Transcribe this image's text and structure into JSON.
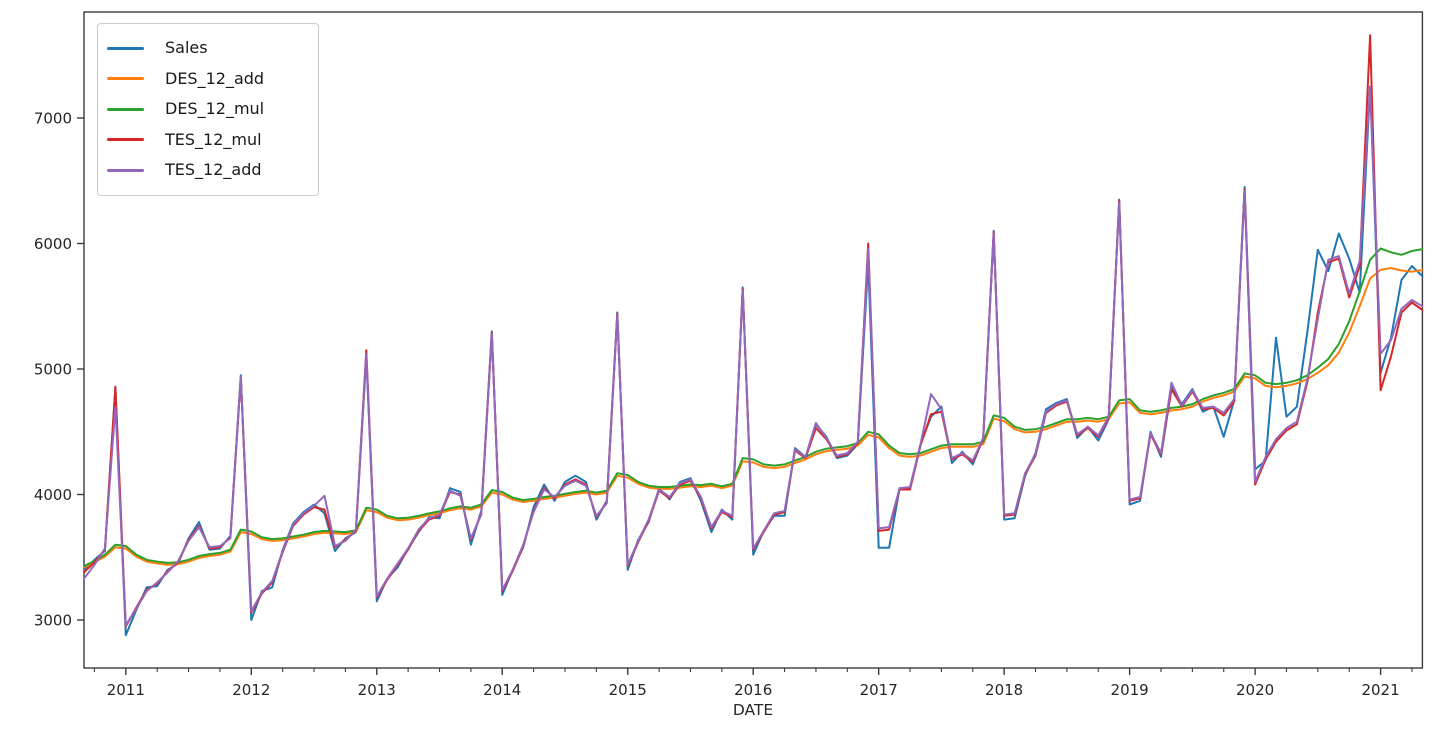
{
  "figure": {
    "background": "#ffffff",
    "spine_color": "#3b3b3b",
    "tick_color": "#3b3b3b",
    "text_color": "#262626",
    "legend_border_color": "#cccccc"
  },
  "chart_data": {
    "type": "line",
    "title": "",
    "xlabel": "DATE",
    "ylabel": "",
    "x_frequency": "monthly",
    "x_start": "2010-09",
    "x_end": "2021-05",
    "grid": false,
    "legend_position": "upper-left",
    "ylim": [
      2618,
      7844
    ],
    "y_ticks": [
      3000,
      4000,
      5000,
      6000,
      7000
    ],
    "x_major_ticks": [
      {
        "label": "2011",
        "month_index": 4
      },
      {
        "label": "2012",
        "month_index": 16
      },
      {
        "label": "2013",
        "month_index": 28
      },
      {
        "label": "2014",
        "month_index": 40
      },
      {
        "label": "2015",
        "month_index": 52
      },
      {
        "label": "2016",
        "month_index": 64
      },
      {
        "label": "2017",
        "month_index": 76
      },
      {
        "label": "2018",
        "month_index": 88
      },
      {
        "label": "2019",
        "month_index": 100
      },
      {
        "label": "2020",
        "month_index": 112
      },
      {
        "label": "2021",
        "month_index": 124
      }
    ],
    "x_minor_tick_month_indices": [
      1,
      7,
      10,
      13,
      19,
      22,
      25,
      31,
      34,
      37,
      43,
      46,
      49,
      55,
      58,
      61,
      67,
      70,
      73,
      79,
      82,
      85,
      91,
      94,
      97,
      103,
      106,
      109,
      115,
      118,
      121,
      127
    ],
    "series": [
      {
        "name": "Sales",
        "color": "#1f77b4",
        "values": [
          3400,
          3480,
          3550,
          4850,
          2880,
          3080,
          3260,
          3270,
          3400,
          3450,
          3650,
          3780,
          3560,
          3570,
          3670,
          4950,
          3000,
          3230,
          3260,
          3560,
          3770,
          3860,
          3920,
          3850,
          3550,
          3650,
          3700,
          5100,
          3150,
          3330,
          3420,
          3570,
          3700,
          3820,
          3810,
          4050,
          4020,
          3600,
          3870,
          5300,
          3200,
          3400,
          3580,
          3900,
          4080,
          3950,
          4100,
          4150,
          4100,
          3800,
          3950,
          5450,
          3400,
          3640,
          3780,
          4050,
          3960,
          4100,
          4130,
          3950,
          3700,
          3880,
          3800,
          5650,
          3520,
          3710,
          3830,
          3830,
          4370,
          4300,
          4560,
          4460,
          4290,
          4310,
          4400,
          5850,
          3575,
          3575,
          4050,
          4050,
          4400,
          4620,
          4700,
          4250,
          4340,
          4240,
          4450,
          6100,
          3800,
          3810,
          4150,
          4330,
          4680,
          4730,
          4760,
          4450,
          4540,
          4430,
          4600,
          6350,
          3920,
          3950,
          4500,
          4300,
          4860,
          4720,
          4840,
          4660,
          4700,
          4460,
          4750,
          6450,
          4200,
          4270,
          5250,
          4620,
          4700,
          5300,
          5950,
          5780,
          6080,
          5880,
          5610,
          7250,
          4970,
          5250,
          5710,
          5820,
          5740
        ]
      },
      {
        "name": "DES_12_add",
        "color": "#ff7f0e",
        "values": [
          3420,
          3460,
          3505,
          3580,
          3570,
          3505,
          3465,
          3450,
          3440,
          3445,
          3465,
          3495,
          3510,
          3520,
          3545,
          3700,
          3685,
          3645,
          3630,
          3635,
          3650,
          3665,
          3685,
          3695,
          3690,
          3685,
          3700,
          3875,
          3860,
          3815,
          3795,
          3800,
          3815,
          3835,
          3850,
          3875,
          3890,
          3880,
          3905,
          4015,
          4000,
          3960,
          3940,
          3950,
          3965,
          3975,
          3990,
          4005,
          4015,
          4000,
          4015,
          4150,
          4135,
          4085,
          4055,
          4045,
          4045,
          4055,
          4065,
          4060,
          4070,
          4050,
          4070,
          4265,
          4255,
          4220,
          4210,
          4220,
          4250,
          4280,
          4320,
          4345,
          4355,
          4365,
          4390,
          4475,
          4455,
          4370,
          4310,
          4300,
          4310,
          4340,
          4370,
          4380,
          4380,
          4380,
          4400,
          4605,
          4585,
          4520,
          4495,
          4500,
          4520,
          4550,
          4580,
          4580,
          4590,
          4580,
          4600,
          4725,
          4735,
          4650,
          4640,
          4650,
          4670,
          4680,
          4700,
          4740,
          4770,
          4790,
          4820,
          4940,
          4925,
          4865,
          4855,
          4865,
          4885,
          4920,
          4970,
          5030,
          5130,
          5290,
          5500,
          5720,
          5790,
          5805,
          5785,
          5775,
          5790
        ]
      },
      {
        "name": "DES_12_mul",
        "color": "#2ca02c",
        "values": [
          3430,
          3470,
          3520,
          3600,
          3590,
          3520,
          3480,
          3465,
          3455,
          3460,
          3480,
          3510,
          3525,
          3535,
          3560,
          3720,
          3705,
          3660,
          3645,
          3650,
          3665,
          3680,
          3700,
          3710,
          3705,
          3700,
          3715,
          3895,
          3880,
          3830,
          3810,
          3815,
          3830,
          3850,
          3865,
          3890,
          3905,
          3895,
          3920,
          4035,
          4020,
          3975,
          3955,
          3965,
          3980,
          3990,
          4005,
          4020,
          4030,
          4015,
          4030,
          4170,
          4155,
          4100,
          4070,
          4060,
          4060,
          4070,
          4080,
          4075,
          4085,
          4065,
          4085,
          4290,
          4280,
          4240,
          4230,
          4240,
          4270,
          4300,
          4340,
          4365,
          4375,
          4385,
          4410,
          4500,
          4480,
          4390,
          4330,
          4320,
          4330,
          4360,
          4390,
          4400,
          4400,
          4400,
          4420,
          4630,
          4610,
          4540,
          4515,
          4520,
          4540,
          4570,
          4600,
          4600,
          4610,
          4600,
          4620,
          4750,
          4760,
          4670,
          4660,
          4670,
          4690,
          4700,
          4720,
          4760,
          4790,
          4810,
          4840,
          4965,
          4950,
          4890,
          4880,
          4890,
          4910,
          4950,
          5010,
          5080,
          5200,
          5380,
          5620,
          5870,
          5960,
          5930,
          5910,
          5940,
          5955
        ]
      },
      {
        "name": "TES_12_mul",
        "color": "#d62728",
        "values": [
          3380,
          3460,
          3560,
          4860,
          2950,
          3100,
          3240,
          3290,
          3390,
          3460,
          3640,
          3750,
          3570,
          3580,
          3660,
          4930,
          3060,
          3210,
          3300,
          3540,
          3750,
          3840,
          3900,
          3880,
          3580,
          3640,
          3710,
          5150,
          3180,
          3320,
          3440,
          3560,
          3710,
          3800,
          3830,
          4020,
          4000,
          3640,
          3850,
          5290,
          3230,
          3390,
          3590,
          3870,
          4050,
          3970,
          4080,
          4120,
          4080,
          3820,
          3940,
          5440,
          3430,
          3620,
          3790,
          4030,
          3970,
          4080,
          4110,
          3970,
          3730,
          3860,
          3820,
          5640,
          3560,
          3700,
          3840,
          3860,
          4350,
          4290,
          4530,
          4440,
          4300,
          4320,
          4410,
          6000,
          3710,
          3720,
          4040,
          4040,
          4390,
          4640,
          4660,
          4280,
          4320,
          4260,
          4440,
          6090,
          3830,
          3840,
          4160,
          4310,
          4650,
          4710,
          4740,
          4470,
          4530,
          4460,
          4610,
          6340,
          3950,
          3970,
          4480,
          4320,
          4840,
          4700,
          4820,
          4680,
          4690,
          4630,
          4740,
          6430,
          4080,
          4280,
          4420,
          4510,
          4560,
          4900,
          5450,
          5850,
          5880,
          5570,
          5820,
          7660,
          4830,
          5100,
          5450,
          5530,
          5470
        ]
      },
      {
        "name": "TES_12_add",
        "color": "#9467bd",
        "values": [
          3330,
          3440,
          3570,
          4700,
          2960,
          3090,
          3230,
          3300,
          3380,
          3470,
          3630,
          3740,
          3580,
          3590,
          3650,
          4940,
          3070,
          3220,
          3310,
          3550,
          3760,
          3850,
          3910,
          3990,
          3590,
          3630,
          3720,
          5120,
          3190,
          3330,
          3450,
          3570,
          3720,
          3810,
          3840,
          4030,
          3990,
          3650,
          3840,
          5280,
          3240,
          3400,
          3600,
          3860,
          4040,
          3980,
          4070,
          4110,
          4070,
          3830,
          3930,
          5430,
          3440,
          3630,
          3800,
          4040,
          3980,
          4090,
          4120,
          3980,
          3740,
          3870,
          3830,
          5630,
          3570,
          3710,
          3850,
          3870,
          4360,
          4300,
          4570,
          4450,
          4310,
          4330,
          4420,
          5960,
          3730,
          3740,
          4050,
          4060,
          4400,
          4800,
          4680,
          4290,
          4330,
          4270,
          4450,
          6080,
          3840,
          3850,
          4170,
          4320,
          4660,
          4720,
          4750,
          4480,
          4540,
          4470,
          4620,
          6330,
          3960,
          3980,
          4490,
          4330,
          4890,
          4710,
          4830,
          4690,
          4700,
          4650,
          4760,
          6420,
          4100,
          4300,
          4440,
          4530,
          4580,
          4920,
          5400,
          5870,
          5900,
          5600,
          5860,
          7250,
          5120,
          5230,
          5480,
          5550,
          5500
        ]
      }
    ]
  }
}
